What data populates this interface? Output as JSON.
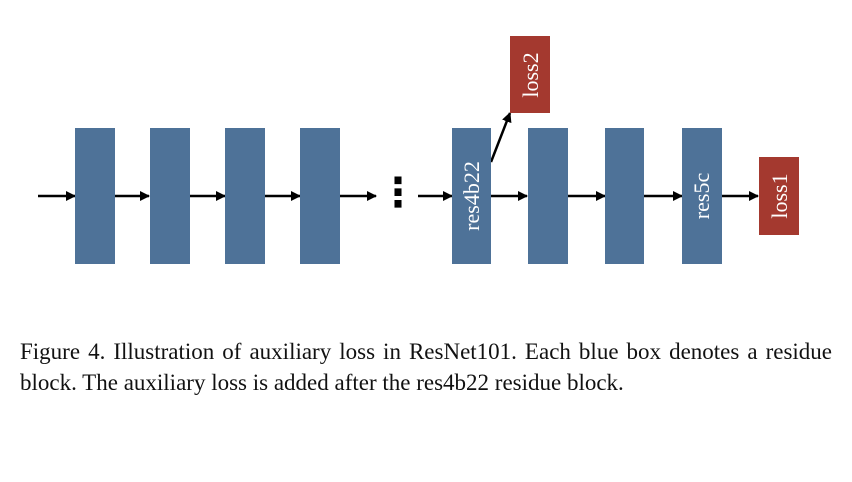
{
  "diagram": {
    "block_labels": [
      "",
      "",
      "",
      "",
      "res4b22",
      "",
      "",
      "res5c"
    ],
    "loss_labels": {
      "aux": "loss2",
      "main": "loss1"
    },
    "ellipsis": "⋮",
    "colors": {
      "block": "#4e7298",
      "loss": "#a4392f",
      "block_text": "#ffffff",
      "arrow": "#000000"
    }
  },
  "caption": "Figure 4. Illustration of auxiliary loss in ResNet101. Each blue box denotes a residue block. The auxiliary loss is added after the res4b22 residue block."
}
